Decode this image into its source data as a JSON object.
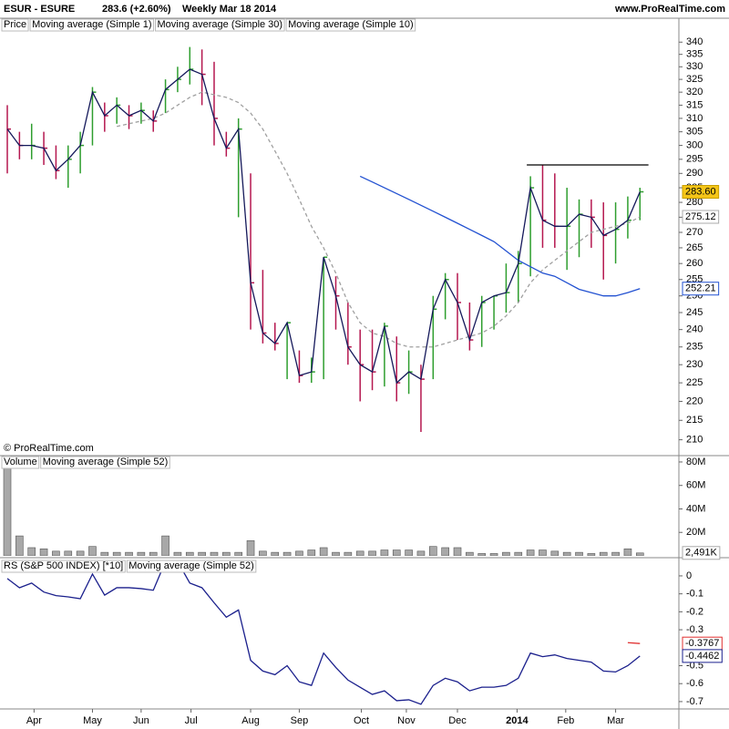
{
  "header": {
    "symbol": "ESUR - ESURE",
    "quote": "283.6 (+2.60%)",
    "period": "Weekly  Mar 18 2014",
    "site": "www.ProRealTime.com"
  },
  "copyright": "© ProRealTime.com",
  "chart_data": [
    {
      "type": "ohlc",
      "legend": "Price",
      "xlim": [
        -0.6,
        55.2
      ],
      "ylim": [
        206,
        350
      ],
      "log": true,
      "yticks": [
        210,
        215,
        220,
        225,
        230,
        235,
        240,
        245,
        250,
        255,
        260,
        265,
        270,
        275,
        280,
        285,
        290,
        295,
        300,
        305,
        310,
        315,
        320,
        325,
        330,
        335,
        340
      ],
      "up_color": "#2e9e2e",
      "down_color": "#b5174f",
      "high": [
        315,
        305,
        308,
        305,
        300,
        300,
        305,
        322,
        316,
        318,
        315,
        316,
        313,
        325,
        330,
        338,
        337,
        332,
        305,
        310,
        290,
        258,
        242,
        242,
        234,
        232,
        262,
        256,
        248,
        240,
        240,
        242,
        238,
        234,
        230,
        250,
        257,
        257,
        248,
        250,
        250,
        260,
        264,
        289,
        293,
        290,
        285,
        281,
        281,
        280,
        280,
        282,
        285
      ],
      "low": [
        290,
        295,
        295,
        293,
        288,
        285,
        290,
        300,
        305,
        308,
        306,
        308,
        305,
        312,
        320,
        323,
        315,
        300,
        296,
        275,
        240,
        236,
        234,
        226,
        225,
        225,
        226,
        240,
        230,
        220,
        223,
        224,
        220,
        222,
        212,
        226,
        243,
        237,
        234,
        235,
        240,
        245,
        248,
        256,
        265,
        265,
        258,
        262,
        265,
        255,
        260,
        268,
        274
      ],
      "series": [
        {
          "name": "Moving average (Simple 1)",
          "color": "#14185a",
          "values": [
            306,
            300,
            300,
            299,
            291,
            295,
            300,
            320,
            311,
            315,
            311,
            313,
            309,
            321,
            325,
            329,
            327,
            310,
            299,
            306,
            254,
            239,
            236,
            242,
            227,
            228,
            262,
            250,
            235,
            230,
            228,
            241,
            225,
            228,
            226,
            246,
            255,
            248,
            237,
            248,
            250,
            251,
            260,
            285,
            274,
            272,
            272,
            276,
            275,
            269,
            271,
            274,
            283.6
          ]
        },
        {
          "name": "Moving average (Simple 30)",
          "color": "#2251d1",
          "values": [
            null,
            null,
            null,
            null,
            null,
            null,
            null,
            null,
            null,
            null,
            null,
            null,
            null,
            null,
            null,
            null,
            null,
            null,
            null,
            null,
            null,
            null,
            null,
            null,
            null,
            null,
            null,
            null,
            null,
            289,
            287,
            285,
            283,
            281,
            279,
            277,
            275,
            273,
            271,
            269,
            267,
            264,
            261,
            259,
            257,
            256,
            254,
            252,
            251,
            250,
            250,
            251,
            252.21
          ]
        },
        {
          "name": "Moving average (Simple 10)",
          "color": "#a0a0a0",
          "dash": true,
          "values": [
            null,
            null,
            null,
            null,
            null,
            null,
            null,
            null,
            null,
            307,
            308,
            309,
            310,
            312,
            315,
            318,
            320,
            319,
            318,
            316,
            312,
            306,
            298,
            290,
            281,
            272,
            265,
            257,
            248,
            242,
            239,
            238,
            236,
            235,
            235,
            235,
            236,
            237,
            238,
            239,
            241,
            244,
            248,
            254,
            258,
            261,
            264,
            267,
            270,
            271,
            272,
            273,
            275.12
          ]
        }
      ],
      "reference_line": 293,
      "last_value_label": "283.60"
    },
    {
      "type": "bar",
      "xlim": [
        -0.6,
        55.2
      ],
      "ylim": [
        0,
        85.4
      ],
      "yticks": [
        {
          "value": 20,
          "label": "20M"
        },
        {
          "value": 40,
          "label": "40M"
        },
        {
          "value": 60,
          "label": "60M"
        },
        {
          "value": 80,
          "label": "80M"
        }
      ],
      "series": [
        {
          "name": "Volume",
          "color": "#a8a8a8",
          "values": [
            95,
            17,
            7,
            6,
            4,
            4,
            4,
            8,
            3,
            3,
            3,
            3,
            3,
            17,
            3,
            3,
            3,
            3,
            3,
            3,
            13,
            4,
            3,
            3,
            4,
            5,
            7,
            3,
            3,
            4,
            4,
            5,
            5,
            5,
            4,
            8,
            7,
            7,
            3,
            2,
            2,
            3,
            3,
            5,
            5,
            4,
            3,
            3,
            2,
            3,
            3,
            6,
            2.491
          ]
        }
      ],
      "overlay_legend": {
        "name": "Moving average (Simple 52)",
        "color": "#e06666"
      },
      "last_value_label": "2,491K"
    },
    {
      "type": "line",
      "xlim": [
        -0.6,
        55.2
      ],
      "ylim": [
        -0.741,
        0.086
      ],
      "yticks": [
        0,
        -0.1,
        -0.2,
        -0.3,
        -0.5,
        -0.6,
        -0.7
      ],
      "series": [
        {
          "name": "RS (S&P 500 INDEX) [*10]",
          "color": "#1a1f8c",
          "values": [
            -0.015,
            -0.066,
            -0.04,
            -0.09,
            -0.11,
            -0.117,
            -0.127,
            0.01,
            -0.107,
            -0.066,
            -0.066,
            -0.071,
            -0.08,
            0.08,
            0.08,
            -0.04,
            -0.066,
            -0.15,
            -0.23,
            -0.19,
            -0.47,
            -0.53,
            -0.55,
            -0.5,
            -0.59,
            -0.61,
            -0.43,
            -0.51,
            -0.58,
            -0.62,
            -0.66,
            -0.64,
            -0.695,
            -0.69,
            -0.715,
            -0.61,
            -0.57,
            -0.59,
            -0.64,
            -0.62,
            -0.62,
            -0.61,
            -0.57,
            -0.43,
            -0.45,
            -0.44,
            -0.46,
            -0.47,
            -0.48,
            -0.53,
            -0.535,
            -0.5,
            -0.4462
          ]
        },
        {
          "name": "Moving average (Simple 52)",
          "color": "#e03030",
          "values": [
            null,
            null,
            null,
            null,
            null,
            null,
            null,
            null,
            null,
            null,
            null,
            null,
            null,
            null,
            null,
            null,
            null,
            null,
            null,
            null,
            null,
            null,
            null,
            null,
            null,
            null,
            null,
            null,
            null,
            null,
            null,
            null,
            null,
            null,
            null,
            null,
            null,
            null,
            null,
            null,
            null,
            null,
            null,
            null,
            null,
            null,
            null,
            null,
            null,
            null,
            null,
            -0.372,
            -0.3767
          ]
        }
      ],
      "xticks": [
        {
          "value": 2.2,
          "label": "Apr"
        },
        {
          "value": 7.0,
          "label": "May"
        },
        {
          "value": 11.0,
          "label": "Jun"
        },
        {
          "value": 15.1,
          "label": "Jul"
        },
        {
          "value": 20.0,
          "label": "Aug"
        },
        {
          "value": 24.0,
          "label": "Sep"
        },
        {
          "value": 29.1,
          "label": "Oct"
        },
        {
          "value": 32.8,
          "label": "Nov"
        },
        {
          "value": 37.0,
          "label": "Dec"
        },
        {
          "value": 41.9,
          "label": "2014"
        },
        {
          "value": 45.9,
          "label": "Feb"
        },
        {
          "value": 50.0,
          "label": "Mar"
        }
      ]
    }
  ]
}
